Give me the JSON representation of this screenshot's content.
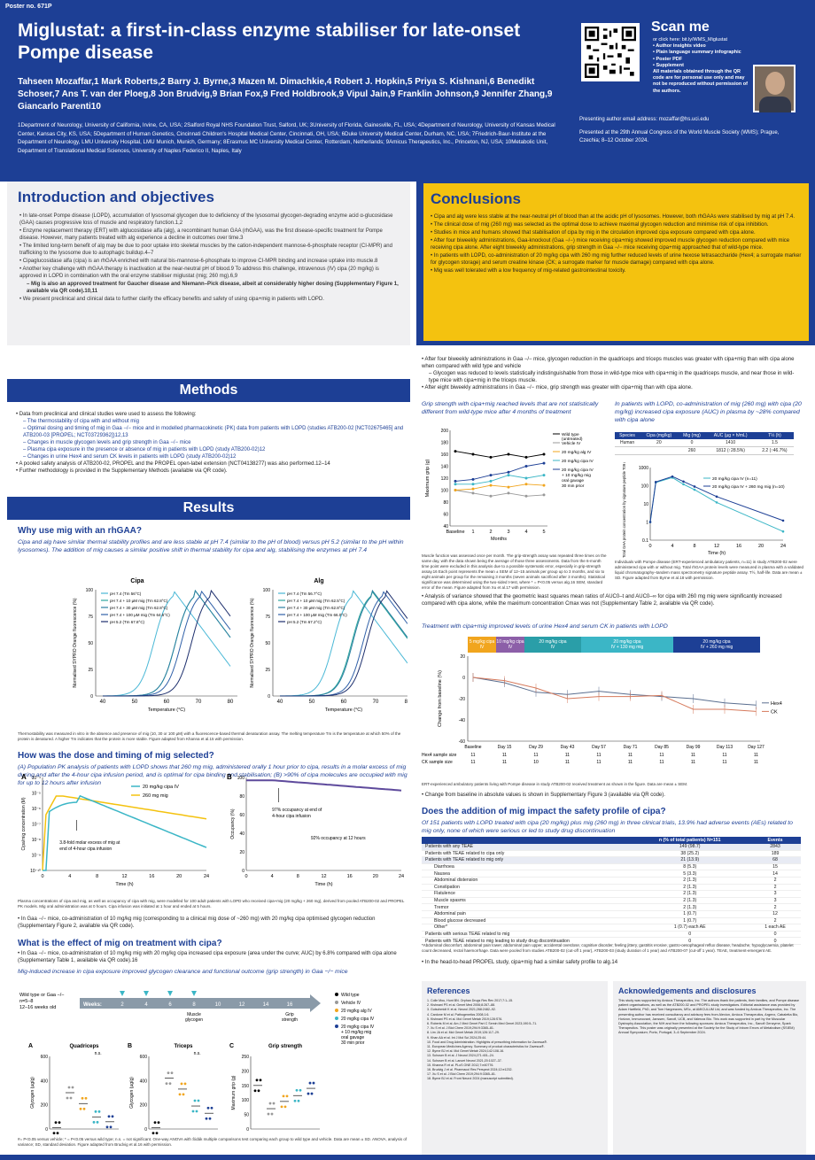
{
  "poster_no": "Poster no. 671P",
  "title": "Miglustat: a first-in-class enzyme stabiliser for late-onset Pompe disease",
  "authors": "Tahseen Mozaffar,1 Mark Roberts,2 Barry J. Byrne,3 Mazen M. Dimachkie,4 Robert J. Hopkin,5 Priya S. Kishnani,6 Benedikt Schoser,7 Ans T. van der Ploeg,8 Jon Brudvig,9 Brian Fox,9 Fred Holdbrook,9 Vipul Jain,9 Franklin Johnson,9 Jennifer Zhang,9 Giancarlo Parenti10",
  "affiliations": "1Department of Neurology, University of California, Irvine, CA, USA; 2Salford Royal NHS Foundation Trust, Salford, UK; 3University of Florida, Gainesville, FL, USA; 4Department of Neurology, University of Kansas Medical Center, Kansas City, KS, USA; 5Department of Human Genetics, Cincinnati Children's Hospital Medical Center, Cincinnati, OH, USA; 6Duke University Medical Center, Durham, NC, USA; 7Friedrich-Baur-Institute at the Department of Neurology, LMU University Hospital, LMU Munich, Munich, Germany; 8Erasmus MC University Medical Center, Rotterdam, Netherlands; 9Amicus Therapeutics, Inc., Princeton, NJ, USA; 10Metabolic Unit, Department of Translational Medical Sciences, University of Naples Federico II, Naples, Italy",
  "scan": {
    "title": "Scan me",
    "l1": "or click here: bit.ly/WMS_Miglustat",
    "l2": "• Author insights video",
    "l3": "• Plain language summary infographic",
    "l4": "• Poster PDF",
    "l5": "• Supplement",
    "l6": "All materials obtained through the QR code are for personal use only and may not be reproduced without permission of the authors."
  },
  "presenting": "Presenting author email address: mozaffar@hs.uci.edu",
  "conference": "Presented at the 29th Annual Congress of the World Muscle Society (WMS); Prague, Czechia; 8–12 October 2024.",
  "intro": {
    "title": "Introduction and objectives",
    "b": [
      "In late-onset Pompe disease (LOPD), accumulation of lysosomal glycogen due to deficiency of the lysosomal glycogen-degrading enzyme acid α-glucosidase (GAA) causes progressive loss of muscle and respiratory function.1,2",
      "Enzyme replacement therapy (ERT) with alglucosidase alfa (alg), a recombinant human GAA (rhGAA), was the first disease-specific treatment for Pompe disease. However, many patients treated with alg experience a decline in outcomes over time.3",
      "The limited long-term benefit of alg may be due to poor uptake into skeletal muscles by the cation-independent mannose-6-phosphate receptor (CI-MPR) and trafficking to the lysosome due to autophagic buildup.4–7",
      "Cipaglucosidase alfa (cipa) is an rhGAA enriched with natural bis-mannose-6-phosphate to improve CI-MPR binding and increase uptake into muscle.8",
      "Another key challenge with rhGAA therapy is inactivation at the near-neutral pH of blood.9 To address this challenge, intravenous (IV) cipa (20 mg/kg) is approved in LOPD in combination with the oral enzyme stabiliser miglustat (mig; 260 mg).6,9",
      "– Mig is also an approved treatment for Gaucher disease and Niemann–Pick disease, albeit at considerably higher dosing (Supplementary Figure 1, available via QR code).10,11",
      "We present preclinical and clinical data to further clarify the efficacy benefits and safety of using cipa+mig in patients with LOPD."
    ]
  },
  "conclusions": {
    "title": "Conclusions",
    "b": [
      "Cipa and alg were less stable at the near-neutral pH of blood than at the acidic pH of lysosomes. However, both rhGAAs were stabilised by mig at pH 7.4.",
      "The clinical dose of mig (260 mg) was selected as the optimal dose to achieve maximal glycogen reduction and minimise risk of cipa inhibition.",
      "Studies in mice and humans showed that stabilisation of cipa by mig in the circulation improved cipa exposure compared with cipa alone.",
      "After four biweekly administrations, Gaa-knockout (Gaa −/−) mice receiving cipa+mig showed improved muscle glycogen reduction compared with mice receiving cipa alone. After eight biweekly administrations, grip strength in Gaa −/− mice receiving cipa+mig approached that of wild-type mice.",
      "In patients with LOPD, co-administration of 20 mg/kg cipa with 260 mg mig further reduced levels of urine hexose tetrasaccharide (Hex4; a surrogate marker for glycogen storage) and serum creatine kinase (CK; a surrogate marker for muscle damage) compared with cipa alone.",
      "Mig was well tolerated with a low frequency of mig-related gastrointestinal toxicity."
    ]
  },
  "methods": {
    "title": "Methods",
    "b": [
      "Data from preclinical and clinical studies were used to assess the following:",
      "– The thermostability of cipa with and without mig",
      "– Optimal dosing and timing of mig in Gaa −/− mice and in modelled pharmacokinetic (PK) data from patients with LOPD (studies ATB200-02 [NCT02675465] and ATB200-03 [PROPEL; NCT03729362])12,13",
      "– Changes in muscle glycogen levels and grip strength in Gaa −/− mice",
      "– Plasma cipa exposure in the presence or absence of mig in patients with LOPD (study ATB200-02)12",
      "– Changes in urine Hex4 and serum CK levels in patients with LOPD (study ATB200-02)12",
      "A pooled safety analysis of ATB200-02, PROPEL and the PROPEL open-label extension (NCT04138277) was also performed.12–14",
      "Further methodology is provided in the Supplementary Methods (available via QR code)."
    ]
  },
  "results": {
    "title": "Results",
    "why_h": "Why use mig with an rhGAA?",
    "why_s": "Cipa and alg have similar thermal stability profiles and are less stable at pH 7.4 (similar to the pH of blood) versus pH 5.2 (similar to the pH within lysosomes). The addition of mig causes a similar positive shift in thermal stability for cipa and alg, stabilising the enzymes at pH 7.4",
    "cipa_label": "Cipa",
    "alg_label": "Alg",
    "thermo_x": "Temperature (°C)",
    "thermo_y": "Normalised SYPRO Orange fluorescence (%)",
    "thermo_ticks_x": [
      "40",
      "50",
      "60",
      "70",
      "80"
    ],
    "thermo_ticks_y": [
      "0",
      "25",
      "50",
      "75",
      "100"
    ],
    "cipa_legend": [
      "pH 7.4 (Tm 56°C)",
      "pH 7.4 + 10 µM mig (Tm 62.8°C)",
      "pH 7.4 + 30 µM mig (Tm 62.8°C)",
      "pH 7.4 + 100 µM mig (Tm 64.6°C)",
      "pH 5.2 (Tm 67.8°C)"
    ],
    "alg_legend": [
      "pH 7.4 (Tm 56.7°C)",
      "pH 7.4 + 10 µM mig (Tm 62.5°C)",
      "pH 7.4 + 30 µM mig (Tm 62.8°C)",
      "pH 7.4 + 100 µM mig (Tm 66.0°C)",
      "pH 5.2 (Tm 67.2°C)"
    ],
    "thermo_cap": "Thermostability was measured in vitro in the absence and presence of mig (10, 30 or 100 µM) with a fluorescence-based thermal denaturation assay. The melting temperature Tm is the temperature at which 50% of the protein is denatured. A higher Tm indicates that the protein is more stable. Figure adapted from Khanna et al.15 with permission.",
    "dose_h": "How was the dose and timing of mig selected?",
    "dose_s": "(A) Population PK analysis of patients with LOPD shows that 260 mg mig, administered orally 1 hour prior to cipa, results in a molar excess of mig during and after the 4-hour cipa infusion period, and is optimal for cipa binding and stabilisation; (B) >90% of cipa molecules are occupied with mig for up to 12 hours after infusion",
    "pkA": "A",
    "pkB": "B",
    "pk_leg1": "20 mg/kg cipa IV",
    "pk_leg2": "260 mg mig",
    "pk_y": "Cipa/mig concentration (M)",
    "pk_x": "Time (h)",
    "occ_y": "Occupancy (%)",
    "pk_ann": "3.8-fold molar excess of mig at end of 4-hour cipa infusion",
    "occ_ann1": "97% occupancy at end of 4-hour cipa infusion",
    "occ_ann2": "92% occupancy at 12 hours",
    "pk_xt": [
      "0",
      "4",
      "8",
      "12",
      "16",
      "20",
      "24"
    ],
    "pk_yt": [
      "10⁻⁴",
      "10⁻⁵",
      "10⁻⁶",
      "10⁻⁷",
      "10⁻⁸",
      "10⁻⁹",
      "10⁻¹⁰"
    ],
    "occ_yt": [
      "100",
      "80",
      "60",
      "40",
      "20",
      "0"
    ],
    "pk_cap": "Plasma concentrations of cipa and mig, as well as occupancy of cipa with mig, were modelled for 100 adult patients with LOPD who received cipa+mig (20 mg/kg + 260 mg), derived from pooled ATB200-02 and PROPEL PK models. Mig oral administration was at 0 hours. Cipa infusion was initiated at 1 hour and ended at 5 hours.",
    "dose_b": "In Gaa −/− mice, co-administration of 10 mg/kg mig (corresponding to a clinical mig dose of ~260 mg) with 20 mg/kg cipa optimised glycogen reduction (Supplementary Figure 2, available via QR code).",
    "eff_h": "What is the effect of mig on treatment with cipa?",
    "eff_b": "In Gaa −/− mice, co-administration of 10 mg/kg mig with 20 mg/kg cipa increased cipa exposure (area under the curve; AUC) by 6.8% compared with cipa alone (Supplementary Table 1, available via QR code).16",
    "mig_s": "Mig-induced increase in cipa exposure improved glycogen clearance and functional outcome (grip strength) in Gaa −/− mice",
    "timeline_lbl": "Wild type or Gaa −/−, n=5–8, 12–16 weeks old",
    "weeks_lbl": "Weeks:",
    "weeks": [
      "2",
      "4",
      "6",
      "8",
      "10",
      "12",
      "14",
      "16"
    ],
    "muscle_lbl": "Muscle glycogen",
    "grip_lbl": "Grip strength",
    "bars_leg": [
      "Wild type",
      "Vehicle IV",
      "20 mg/kg alg IV",
      "20 mg/kg cipa IV",
      "20 mg/kg cipa IV + 10 mg/kg mig oral gavage 30 min prior"
    ],
    "bars_titles": [
      "Quadriceps",
      "Triceps",
      "Grip strength"
    ],
    "bars_y": [
      "Glycogen (µg/g)",
      "Glycogen (µg/g)",
      "Maximum grip (g)"
    ],
    "bars_yt1": [
      "0",
      "200",
      "400",
      "600"
    ],
    "bars_yt3": [
      "0",
      "50",
      "100",
      "150",
      "200",
      "250"
    ],
    "ns": "n.s.",
    "bars_cap": "#= P<0.05 versus vehicle; * = P<0.05 versus wild type; n.s. = not significant. One-way ANOVA with Šidák multiple comparisons test comparing each group to wild type and vehicle. Data are mean ± SD. ANOVA, analysis of variance; SD, standard deviation. Figure adapted from Brudvig et al.16 with permission.",
    "col2_b1": "After four biweekly administrations in Gaa −/− mice, glycogen reduction in the quadriceps and triceps muscles was greater with cipa+mig than with cipa alone when compared with wild type and vehicle",
    "col2_b2": "– Glycogen was reduced to levels statistically indistinguishable from those in wild-type mice with cipa+mig in the quadriceps muscle, and near those in wild-type mice with cipa+mig in the triceps muscle.",
    "col2_b3": "After eight biweekly administrations in Gaa −/− mice, grip strength was greater with cipa+mig than with cipa alone.",
    "grip_s": "Grip strength with cipa+mig reached levels that are not statistically different from wild-type mice after 4 months of treatment",
    "grip_leg": [
      "Wild type (untreated)",
      "Vehicle IV",
      "20 mg/kg alg IV",
      "20 mg/kg cipa IV",
      "20 mg/kg cipa IV + 10 mg/kg mig oral gavage 30 min prior"
    ],
    "grip_y": "Maximum grip (g)",
    "grip_x": "Months",
    "grip_xt": [
      "Baseline",
      "1",
      "2",
      "3",
      "4",
      "5"
    ],
    "grip_yt": [
      "40",
      "60",
      "80",
      "100",
      "120",
      "140",
      "160",
      "180",
      "200"
    ],
    "grip_cap": "Muscle function was assessed once per month. The grip-strength assay was repeated three times on the same day, with the data shown being the average of those three assessments. Data from the 6-month time point were excluded in this analysis due to a possible systematic error, especially in grip-strength assay.16 Each point represents the mean ± SEM of 12–15 animals per group up to 3 months, and six to eight animals per group for the remaining 3 months (seven animals sacrificed after 3 months). Statistical significance was determined using the two-sided t-test, where * = P<0.05 versus alg.16 SEM, standard error of the mean. Figure adapted from Xu et al.17 with permission.",
    "auc_s": "In patients with LOPD, co-administration of mig (260 mg) with cipa (20 mg/kg) increased cipa exposure (AUC) in plasma by ~28% compared with cipa alone",
    "auc_tbl_h": [
      "Species",
      "Cipa (mg/kg)",
      "Mig (mg)",
      "AUC (µg × h/mL)",
      "T½ (h)"
    ],
    "auc_tbl_r": [
      [
        "Human",
        "20",
        "0",
        "1410",
        "1.5"
      ],
      [
        "",
        "",
        "260",
        "1812 (↑28.5%)",
        "2.2 (↑46.7%)"
      ]
    ],
    "auc_leg": [
      "20 mg/kg cipa IV (n=11)",
      "20 mg/kg cipa IV + 260 mg mig (n=10)"
    ],
    "auc_y": "Total GAA protein concentration by signature peptide T09 (µg/mL)",
    "auc_x": "Time (h)",
    "auc_xt": [
      "0",
      "4",
      "8",
      "12",
      "16",
      "20",
      "24"
    ],
    "auc_yt": [
      "1000",
      "100",
      "10",
      "1",
      "0.1"
    ],
    "auc_cap": "Individuals with Pompe disease (ERT-experienced ambulatory patients, n=11) in study ATB200-02 were administered cipa with or without mig. Total rhGAA protein levels were measured in plasma with a validated liquid chromatography–tandem mass spectrometry signature peptide assay. T½, half-life. Data are mean ± SD. Figure adapted from Byrne et al.18 with permission.",
    "auc_b": "Analysis of variance showed that the geometric least squares mean ratios of AUC0–t and AUC0–∞ for cipa with 260 mg mig were significantly increased compared with cipa alone, while the maximum concentration Cmax was not (Supplementary Table 2, available via QR code).",
    "hex_s": "Treatment with cipa+mig improved levels of urine Hex4 and serum CK in patients with LOPD",
    "hex_bands": [
      "5 mg/kg cipa IV",
      "10 mg/kg cipa IV",
      "20 mg/kg cipa IV",
      "20 mg/kg cipa IV + 130 mg mig",
      "20 mg/kg cipa IV + 260 mg mig"
    ],
    "hex_y": "Change from baseline (%)",
    "hex_yt": [
      "20",
      "0",
      "-20",
      "-40",
      "-60"
    ],
    "hex_xt": [
      "Baseline",
      "Day 15",
      "Day 29",
      "Day 43",
      "Day 57",
      "Day 71",
      "Day 85",
      "Day 99",
      "Day 113",
      "Day 127"
    ],
    "hex_leg": [
      "Hex4",
      "CK"
    ],
    "hex_ss1": "Hex4 sample size",
    "hex_ss2": "CK sample size",
    "hex_n1": [
      "11",
      "11",
      "11",
      "11",
      "11",
      "11",
      "11",
      "11",
      "11",
      "11"
    ],
    "hex_n2": [
      "11",
      "11",
      "10",
      "11",
      "11",
      "11",
      "11",
      "11",
      "11",
      "11"
    ],
    "hex_cap": "ERT-experienced ambulatory patients living with Pompe disease in study ATB200-02 received treatment as shown in the figure. Data are mean ± SEM.",
    "hex_b": "Change from baseline in absolute values is shown in Supplementary Figure 3 (available via QR code).",
    "safety_h": "Does the addition of mig impact the safety profile of cipa?",
    "safety_s": "Of 151 patients with LOPD treated with cipa (20 mg/kg) plus mig (260 mg) in three clinical trials, 13.9% had adverse events (AEs) related to mig only, none of which were serious or led to study drug discontinuation",
    "safety_hdr": [
      "",
      "n (% of total patients) N=151",
      "Events"
    ],
    "safety_rows": [
      [
        "Patients with any TEAE",
        "149 (98.7)",
        "2843"
      ],
      [
        "Patients with TEAE related to cipa only",
        "38 (25.2)",
        "189"
      ],
      [
        "Patients with TEAE related to mig only",
        "21 (13.9)",
        "68"
      ],
      [
        "Diarrhoea",
        "8 (5.3)",
        "15"
      ],
      [
        "Nausea",
        "5 (3.3)",
        "14"
      ],
      [
        "Abdominal distension",
        "2 (1.3)",
        "2"
      ],
      [
        "Constipation",
        "2 (1.3)",
        "2"
      ],
      [
        "Flatulence",
        "2 (1.3)",
        "3"
      ],
      [
        "Muscle spasms",
        "2 (1.3)",
        "3"
      ],
      [
        "Tremor",
        "2 (1.3)",
        "2"
      ],
      [
        "Abdominal pain",
        "1 (0.7)",
        "12"
      ],
      [
        "Blood glucose decreased",
        "1 (0.7)",
        "2"
      ],
      [
        "Other*",
        "1 (0.7) each AE",
        "1 each AE"
      ],
      [
        "Patients with serious TEAE related to mig",
        "0",
        "0"
      ],
      [
        "Patients with TEAE related to mig leading to study drug discontinuation",
        "0",
        "0"
      ]
    ],
    "safety_cap": "*Abdominal discomfort, abdominal pain lower, abdominal pain upper, accidental overdose, cognitive disorder, feeling jittery, gastritis erosive, gastro-oesophageal reflux disease, headache, hypoglycaemia, platelet count decreased, rectal haemorrhage. Data were pooled from studies ATB200-02 (cut-off 1 year), ATB200-03 (study duration of 1 year) and ATB200-07 (cut-off 1 year). TEAE, treatment-emergent AE.",
    "safety_b": "In the head-to-head PROPEL study, cipa+mig had a similar safety profile to alg.14"
  },
  "refs": {
    "title": "References",
    "items": [
      "1. Colle Mou, Hunt BN. Orphan Drugs Res Rev 2017;7:1–15.",
      "2. Kishnani PS et al. Genet Med 2006;8:267–88.",
      "3. Gutschmidt K et al. Neurol 2021;268:2482–92.",
      "4. Cardone M et al. Pathogenetics 2008;1:6.",
      "5. Kishnani PS et al. Mol Genet Metab 2019;128:S76.",
      "6. Roberts M et al. Am J Med Genet Part C Semin Med Genet 2023;190:5–71.",
      "7. Xu S et al. J Biol Chem 2019;294:9:3365–81.",
      "8. Lim JA et al. Mol Genet Metab 2019;126:117–29.",
      "9. Khan AA et al. Int J Mol Sci 2024;25:44.",
      "10. Food and Drug Administration. Highlights of prescribing information for Zavesca®.",
      "11. European Medicines Agency. Summary of product characteristics for Zavesca®.",
      "12. Byrne BJ et al. Mol Genet Metab 2024;142:108-16.",
      "13. Schoser B et al. J Neurol 2024;271:401–24.",
      "14. Schoser B et al. Lancet Neurol 2021;20:1027–37.",
      "15. Khanna R et al. PLoS ONE 2012;7:e40776.",
      "16. Brudvig J et al. Pharmacol Res Perspect 2024;12:e1232.",
      "17. Xu S et al. J Biol Chem 2019;294:9:3365–81.",
      "18. Byrne BJ et al. Front Neurol 2024 (manuscript submitted)."
    ]
  },
  "ackn": {
    "title": "Acknowledgements and disclosures",
    "text": "This study was supported by Amicus Therapeutics, Inc. The authors thank the patients, their families, and Pompe disease patient organisations, as well as the ATB200-02 and PROPEL study investigators. Editorial assistance was provided by Adam Hartfield, PhD, and Tom Hargreaves, MSc, at AMICULUM Ltd, and was funded by Amicus Therapeutics, Inc. The presenting author has received consultancy and advisory fees from Alexion, Amicus Therapeutics, Argenx, Cabaletta Bio, Horizon, Immunovant, Janssen, Sanofi, UCB, and Valenza Bio. This work was supported in part by the Muscular Dystrophy Association, the NIH and from the following sponsors: Amicus Therapeutics, Inc., Sanofi Genzyme, Spark Therapeutics. This poster was originally presented at the Society for the Study of Inborn Errors of Metabolism (SSIEM) Annual Symposium; Porto, Portugal; 3–6 September 2024."
  },
  "colors": {
    "navy": "#1d3f95",
    "gold": "#f4c20f",
    "teal": "#3bb6c6",
    "orange": "#f1a51e",
    "dark": "#1d3f95",
    "grey": "#999999",
    "purple": "#5e4a9c"
  }
}
